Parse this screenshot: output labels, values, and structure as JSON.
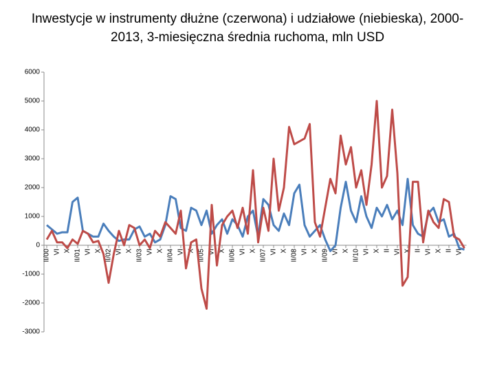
{
  "chart_data": {
    "type": "line",
    "title": "Inwestycje w instrumenty dłużne (czerwona) i udziałowe (niebieska), 2000-2013, 3-miesięczna średnia ruchoma, mln USD",
    "categories": [
      "II/00",
      null,
      "VI",
      null,
      "X",
      null,
      "II/01",
      null,
      "VI",
      null,
      "X",
      null,
      "II/02",
      null,
      "VI",
      null,
      "X",
      null,
      "II/03",
      null,
      "VI",
      null,
      "X",
      null,
      "II/04",
      null,
      "VI",
      null,
      "X",
      null,
      "II/05",
      null,
      "VI",
      null,
      "X",
      null,
      "II/06",
      null,
      "VI",
      null,
      "X",
      null,
      "II/07",
      null,
      "VI",
      null,
      "X",
      null,
      "II/08",
      null,
      "VI",
      null,
      "X",
      null,
      "II/09",
      null,
      "VI",
      null,
      "X",
      null,
      "II/10",
      null,
      "VI",
      null,
      "X",
      null,
      "II",
      null,
      "VI",
      null,
      "X",
      null,
      "II",
      null,
      "VI",
      null,
      "X",
      null,
      "II",
      null,
      "VI",
      null
    ],
    "series": [
      {
        "color": "#4a7ebb",
        "values": [
          700,
          550,
          400,
          450,
          450,
          1500,
          1650,
          500,
          400,
          300,
          300,
          750,
          500,
          300,
          150,
          200,
          200,
          550,
          650,
          300,
          400,
          100,
          200,
          700,
          1700,
          1600,
          600,
          500,
          1300,
          1200,
          700,
          1200,
          400,
          700,
          900,
          400,
          900,
          700,
          300,
          1000,
          1200,
          300,
          1600,
          1400,
          700,
          500,
          1100,
          700,
          1800,
          2100,
          700,
          300,
          500,
          700,
          200,
          -200,
          0,
          1300,
          2200,
          1200,
          800,
          1700,
          1000,
          600,
          1300,
          1000,
          1400,
          900,
          1200,
          700,
          2300,
          700,
          400,
          300,
          1100,
          1300,
          800,
          900,
          300,
          400,
          -100,
          -150
        ]
      },
      {
        "color": "#be4b48",
        "values": [
          200,
          500,
          100,
          100,
          -100,
          200,
          50,
          500,
          400,
          100,
          150,
          -300,
          -1300,
          -300,
          500,
          0,
          700,
          600,
          0,
          200,
          -100,
          500,
          300,
          800,
          600,
          400,
          1200,
          -800,
          100,
          200,
          -1500,
          -2200,
          1400,
          -700,
          700,
          1000,
          1200,
          600,
          1300,
          400,
          2600,
          100,
          1300,
          500,
          3000,
          1200,
          2000,
          4100,
          3500,
          3600,
          3700,
          4200,
          800,
          300,
          1300,
          2300,
          1800,
          3800,
          2800,
          3400,
          2000,
          2600,
          1400,
          2800,
          5000,
          2000,
          2400,
          4700,
          2500,
          -1400,
          -1100,
          2200,
          2200,
          100,
          1200,
          800,
          600,
          1600,
          1500,
          300,
          200,
          -100
        ]
      }
    ],
    "ylim": [
      -3000,
      6000
    ],
    "yticks": [
      -3000,
      -2000,
      -1000,
      0,
      1000,
      2000,
      3000,
      4000,
      5000,
      6000
    ],
    "grid": false
  }
}
